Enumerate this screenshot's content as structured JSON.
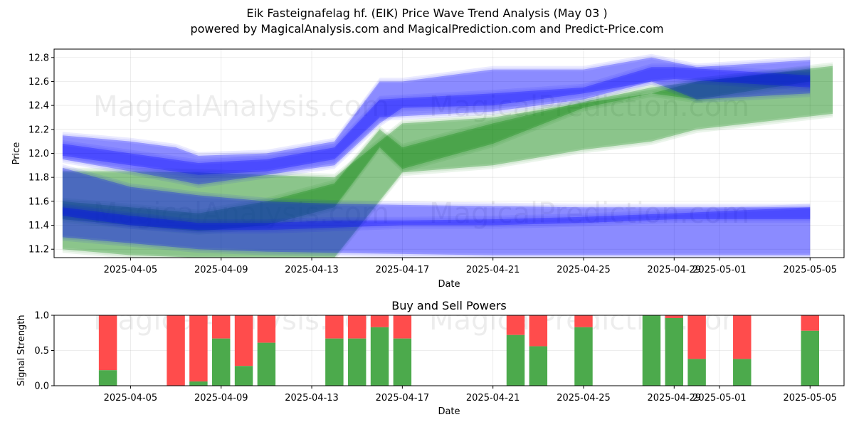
{
  "figure": {
    "title": "Eik Fasteignafelag hf. (EIK) Price Wave Trend Analysis (May 03 )",
    "subtitle": "powered by MagicalAnalysis.com and MagicalPrediction.com and Predict-Price.com",
    "watermarks": [
      "MagicalAnalysis.com",
      "MagicalPrediction.com"
    ]
  },
  "chart_data": [
    {
      "type": "area",
      "title": "",
      "xlabel": "Date",
      "ylabel": "Price",
      "ylim": [
        11.13,
        12.87
      ],
      "xlim": [
        "2025-04-01T15:00",
        "2025-05-06T12:00"
      ],
      "y_ticks": [
        11.2,
        11.4,
        11.6,
        11.8,
        12.0,
        12.2,
        12.4,
        12.6,
        12.8
      ],
      "x_ticks": [
        "2025-04-05",
        "2025-04-09",
        "2025-04-13",
        "2025-04-17",
        "2025-04-21",
        "2025-04-25",
        "2025-04-29",
        "2025-05-01",
        "2025-05-05"
      ],
      "grid": true,
      "colors": {
        "blue_band": "#0000ff",
        "green_band": "#008000"
      },
      "bands": [
        {
          "color": "green",
          "x": [
            "2025-04-02",
            "2025-04-05",
            "2025-04-08",
            "2025-04-11",
            "2025-04-14",
            "2025-04-17",
            "2025-04-21",
            "2025-04-25",
            "2025-04-28",
            "2025-04-30",
            "2025-05-06"
          ],
          "upper": [
            11.85,
            11.85,
            11.84,
            11.82,
            11.8,
            12.25,
            12.3,
            12.42,
            12.5,
            12.6,
            12.73
          ],
          "lower": [
            11.2,
            11.15,
            11.13,
            11.13,
            11.13,
            11.84,
            11.9,
            12.03,
            12.1,
            12.2,
            12.33
          ]
        },
        {
          "color": "green",
          "x": [
            "2025-04-02",
            "2025-04-05",
            "2025-04-08",
            "2025-04-11",
            "2025-04-14",
            "2025-04-16",
            "2025-04-17",
            "2025-04-21",
            "2025-04-25",
            "2025-04-28",
            "2025-04-30",
            "2025-05-05"
          ],
          "upper": [
            11.6,
            11.55,
            11.5,
            11.6,
            11.75,
            12.2,
            12.05,
            12.25,
            12.43,
            12.55,
            12.6,
            12.7
          ],
          "lower": [
            11.45,
            11.4,
            11.35,
            11.4,
            11.55,
            12.05,
            11.87,
            12.08,
            12.38,
            12.5,
            12.45,
            12.6
          ]
        },
        {
          "color": "blue",
          "x": [
            "2025-04-02",
            "2025-04-05",
            "2025-04-07",
            "2025-04-08",
            "2025-04-11",
            "2025-04-14",
            "2025-04-16",
            "2025-04-17",
            "2025-04-21",
            "2025-04-25",
            "2025-04-28",
            "2025-04-30",
            "2025-05-05"
          ],
          "upper": [
            12.15,
            12.1,
            12.05,
            11.98,
            12.0,
            12.1,
            12.6,
            12.6,
            12.7,
            12.7,
            12.8,
            12.72,
            12.78
          ],
          "lower": [
            11.95,
            11.85,
            11.78,
            11.74,
            11.82,
            11.9,
            12.25,
            12.38,
            12.4,
            12.5,
            12.6,
            12.45,
            12.5
          ]
        },
        {
          "color": "blue",
          "x": [
            "2025-04-02",
            "2025-04-05",
            "2025-04-08",
            "2025-04-11",
            "2025-04-14",
            "2025-04-16",
            "2025-04-21",
            "2025-04-25",
            "2025-04-28",
            "2025-04-29",
            "2025-05-05"
          ],
          "upper": [
            12.08,
            12.0,
            11.92,
            11.95,
            12.05,
            12.45,
            12.5,
            12.55,
            12.72,
            12.72,
            12.65
          ],
          "lower": [
            11.98,
            11.9,
            11.82,
            11.85,
            11.95,
            12.3,
            12.35,
            12.45,
            12.6,
            12.62,
            12.55
          ]
        },
        {
          "color": "blue",
          "x": [
            "2025-04-02",
            "2025-04-05",
            "2025-04-08",
            "2025-04-11",
            "2025-04-14",
            "2025-04-17",
            "2025-04-21",
            "2025-04-25",
            "2025-04-29",
            "2025-05-05"
          ],
          "upper": [
            11.88,
            11.72,
            11.65,
            11.6,
            11.58,
            11.57,
            11.56,
            11.55,
            11.55,
            11.55
          ],
          "lower": [
            11.48,
            11.4,
            11.36,
            11.36,
            11.38,
            11.4,
            11.4,
            11.42,
            11.45,
            11.45
          ]
        },
        {
          "color": "blue",
          "x": [
            "2025-04-02",
            "2025-04-05",
            "2025-04-08",
            "2025-04-11",
            "2025-04-14",
            "2025-04-17",
            "2025-04-21",
            "2025-04-25",
            "2025-04-29",
            "2025-05-05"
          ],
          "upper": [
            11.55,
            11.48,
            11.42,
            11.42,
            11.44,
            11.44,
            11.45,
            11.47,
            11.5,
            11.55
          ],
          "lower": [
            11.3,
            11.25,
            11.2,
            11.18,
            11.17,
            11.16,
            11.15,
            11.15,
            11.15,
            11.15
          ]
        }
      ]
    },
    {
      "type": "bar",
      "title": "Buy and Sell Powers",
      "xlabel": "Date",
      "ylabel": "Signal Strength",
      "ylim": [
        0,
        1
      ],
      "y_ticks": [
        "0.0",
        "0.5",
        "1.0"
      ],
      "x_ticks": [
        "2025-04-05",
        "2025-04-09",
        "2025-04-13",
        "2025-04-17",
        "2025-04-21",
        "2025-04-25",
        "2025-04-29",
        "2025-05-01",
        "2025-05-05"
      ],
      "colors": {
        "buy": "#4caa4c",
        "sell": "#ff4c4c"
      },
      "series": [
        {
          "dates": [
            "2025-04-04",
            "2025-04-07",
            "2025-04-08",
            "2025-04-09",
            "2025-04-10",
            "2025-04-11",
            "2025-04-14",
            "2025-04-15",
            "2025-04-16",
            "2025-04-17",
            "2025-04-22",
            "2025-04-23",
            "2025-04-25",
            "2025-04-28",
            "2025-04-29",
            "2025-04-30",
            "2025-05-02",
            "2025-05-05"
          ],
          "buy": [
            0.22,
            0.0,
            0.06,
            0.67,
            0.28,
            0.61,
            0.67,
            0.67,
            0.83,
            0.67,
            0.72,
            0.56,
            0.83,
            1.0,
            0.96,
            0.38,
            0.38,
            0.78
          ]
        }
      ]
    }
  ]
}
